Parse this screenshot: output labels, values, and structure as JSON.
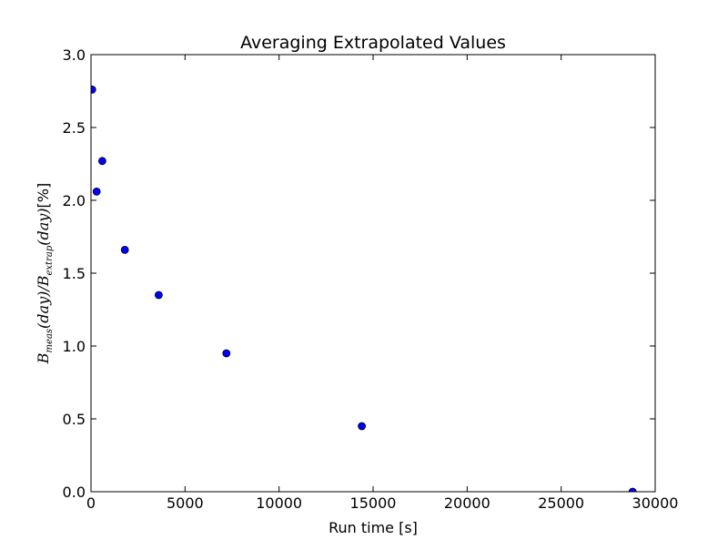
{
  "chart_data": {
    "type": "scatter",
    "title": "Averaging Extrapolated Values",
    "xlabel": "Run time [s]",
    "ylabel": {
      "latex": "$B_{meas}(day)/B_{extrap}(day)$[%]",
      "unit": "[%]"
    },
    "xlim": [
      0,
      30000
    ],
    "ylim": [
      0.0,
      3.0
    ],
    "x_ticks": [
      0,
      5000,
      10000,
      15000,
      20000,
      25000,
      30000
    ],
    "x_tick_labels": [
      "0",
      "5000",
      "10000",
      "15000",
      "20000",
      "25000",
      "30000"
    ],
    "y_ticks": [
      0.0,
      0.5,
      1.0,
      1.5,
      2.0,
      2.5,
      3.0
    ],
    "y_tick_labels": [
      "0.0",
      "0.5",
      "1.0",
      "1.5",
      "2.0",
      "2.5",
      "3.0"
    ],
    "grid": false,
    "legend": "none",
    "marker_color": "#0000ff",
    "series": [
      {
        "x": [
          60,
          300,
          600,
          1800,
          3600,
          7200,
          14400,
          28800
        ],
        "y": [
          2.76,
          2.06,
          2.27,
          1.66,
          1.35,
          0.95,
          0.45,
          0.0
        ]
      }
    ]
  }
}
